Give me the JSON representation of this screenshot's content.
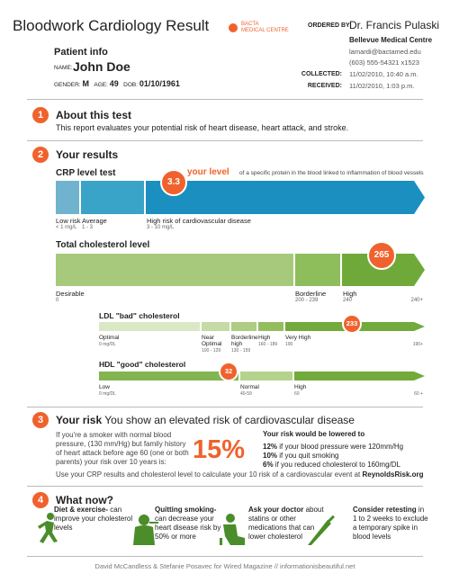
{
  "header": {
    "title": "Bloodwork Cardiology Result",
    "lab_line1": "BACTA",
    "lab_line2": "MEDICAL CENTRE",
    "ordered_by_label": "ORDERED BY:",
    "doctor": "Dr. Francis Pulaski",
    "clinic": "Bellevue Medical Centre",
    "email": "lamardi@bactamed.edu",
    "phone": "(603) 555-54321 x1523",
    "collected_label": "COLLECTED:",
    "collected": "11/02/2010, 10:40 a.m.",
    "received_label": "RECEIVED:",
    "received": "11/02/2010, 1:03 p.m."
  },
  "patient": {
    "heading": "Patient info",
    "name_label": "NAME:",
    "name": "John Doe",
    "gender_label": "GENDER:",
    "gender": "M",
    "age_label": "AGE:",
    "age": "49",
    "dob_label": "DOB:",
    "dob": "01/10/1961"
  },
  "about": {
    "number": "1",
    "title": "About this test",
    "text": "This report evaluates your potential risk of heart disease, heart attack, and stroke."
  },
  "results": {
    "number": "2",
    "title": "Your results",
    "crp": {
      "title": "CRP level test",
      "value": "3.3",
      "your_level": "your level",
      "note": "of a specific protein in the blood linked to inflammation of blood vessels",
      "segments": [
        {
          "label": "Low risk",
          "range": "< 1 mg/L"
        },
        {
          "label": "Average",
          "range": "1 - 3"
        },
        {
          "label": "High risk of cardiovascular disease",
          "range": "3 - 10 mg/L"
        }
      ]
    },
    "total": {
      "title": "Total cholesterol level",
      "value": "265",
      "segments": [
        {
          "label": "Desirable",
          "range": "0"
        },
        {
          "label": "Borderline",
          "range": "200 - 239"
        },
        {
          "label": "High",
          "range": "240"
        }
      ],
      "end": "240+"
    },
    "ldl": {
      "title": "LDL \"bad\" cholesterol",
      "value": "233",
      "segments": [
        {
          "label": "Optimal",
          "range": "0 mg/DL"
        },
        {
          "label": "Near Optimal",
          "range": "100 - 129"
        },
        {
          "label": "Borderline high",
          "range": "130 - 159"
        },
        {
          "label": "High",
          "range": "160 - 189"
        },
        {
          "label": "Very High",
          "range": "190"
        }
      ],
      "end": "190+"
    },
    "hdl": {
      "title": "HDL \"good\" cholesterol",
      "value": "32",
      "segments": [
        {
          "label": "Low",
          "range": "0 mg/DL"
        },
        {
          "label": "Normal",
          "range": "40-59"
        },
        {
          "label": "High",
          "range": "60"
        }
      ],
      "end": "60 +"
    }
  },
  "risk": {
    "number": "3",
    "title": "Your risk",
    "subtitle": "You show an elevated risk of cardiovascular disease",
    "text": "If you're a smoker with normal blood pressure, (130 mm/Hg) but family history of heart attack before age 60 (one or both parents) your risk over 10 years is:",
    "percent": "15%",
    "lowered_heading": "Your risk would be lowered to",
    "items": [
      {
        "pct": "12%",
        "text": "if your blood pressure were 120mm/Hg"
      },
      {
        "pct": "10%",
        "text": "if you quit smoking"
      },
      {
        "pct": "6%",
        "text": "if you reduced cholesterol to 160mg/DL"
      }
    ],
    "footer": "Use your CRP results and cholesterol level to calculate your 10 risk of a cardiovascular event at",
    "link": "ReynoldsRisk.org"
  },
  "what_now": {
    "number": "4",
    "title": "What now?",
    "items": [
      {
        "bold": "Diet & exercise-",
        "text": "can improve your cholesterol levels"
      },
      {
        "bold": "Quitting smoking-",
        "text": "can decrease your heart disease risk by 50% or more"
      },
      {
        "bold": "Ask your doctor",
        "text": "about statins or other medications that can lower cholesterol"
      },
      {
        "bold": "Consider retesting",
        "text": "in 1 to 2 weeks to exclude a temporary spike in blood levels"
      }
    ]
  },
  "credit": "David McCandless & Stefanie Posavec for Wired Magazine // informationisbeautiful.net"
}
